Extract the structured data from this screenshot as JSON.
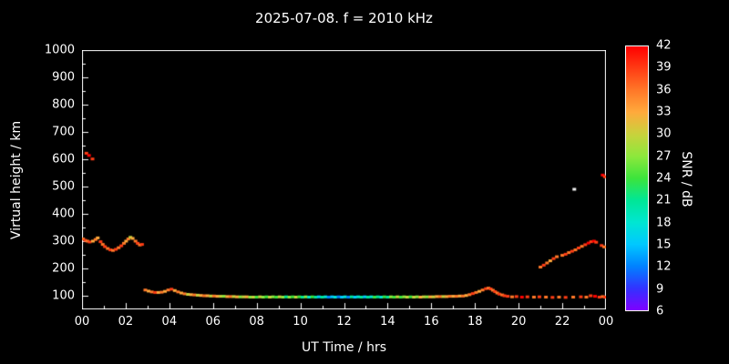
{
  "page": {
    "background": "#000000",
    "text_color": "#ffffff"
  },
  "chart_data": {
    "type": "scatter",
    "title": "2025-07-08. f = 2010 kHz",
    "xlabel": "UT Time / hrs",
    "ylabel": "Virtual height / km",
    "xlim": [
      0,
      24
    ],
    "ylim": [
      50,
      1000
    ],
    "xticks": [
      0,
      2,
      4,
      6,
      8,
      10,
      12,
      14,
      16,
      18,
      20,
      22,
      24
    ],
    "xtick_labels": [
      "00",
      "02",
      "04",
      "06",
      "08",
      "10",
      "12",
      "14",
      "16",
      "18",
      "20",
      "22",
      "00"
    ],
    "x_minor_step": 1,
    "yticks": [
      100,
      200,
      300,
      400,
      500,
      600,
      700,
      800,
      900,
      1000
    ],
    "ytick_labels": [
      "100",
      "200",
      "300",
      "400",
      "500",
      "600",
      "700",
      "800",
      "900",
      "1000"
    ],
    "y_minor_step": 50,
    "grid": false,
    "background": "#000000",
    "frame_color": "#ffffff",
    "colorbar": {
      "label": "SNR / dB",
      "min": 6,
      "max": 42,
      "ticks": [
        42,
        39,
        36,
        33,
        30,
        27,
        24,
        21,
        18,
        15,
        12,
        9,
        6
      ],
      "stops": [
        [
          6,
          "#7f00ff"
        ],
        [
          9,
          "#3232ff"
        ],
        [
          12,
          "#0082ff"
        ],
        [
          15,
          "#00c8ff"
        ],
        [
          18,
          "#00e6d2"
        ],
        [
          21,
          "#00e696"
        ],
        [
          24,
          "#3ce43c"
        ],
        [
          27,
          "#8ce83c"
        ],
        [
          30,
          "#c8d23c"
        ],
        [
          33,
          "#ffaa3c"
        ],
        [
          36,
          "#ff7828"
        ],
        [
          39,
          "#ff3c14"
        ],
        [
          42,
          "#ff0000"
        ]
      ]
    },
    "point_format": "[hour_ut, virtual_height_km, snr_db, optional_color_override]",
    "points": [
      [
        0.05,
        308,
        36
      ],
      [
        0.15,
        303,
        39
      ],
      [
        0.25,
        300,
        36
      ],
      [
        0.35,
        297,
        39
      ],
      [
        0.5,
        300,
        33
      ],
      [
        0.62,
        306,
        36
      ],
      [
        0.72,
        312,
        33
      ],
      [
        0.85,
        298,
        39
      ],
      [
        0.95,
        288,
        36
      ],
      [
        1.05,
        280,
        39
      ],
      [
        1.18,
        273,
        36
      ],
      [
        1.3,
        268,
        39
      ],
      [
        1.42,
        266,
        36
      ],
      [
        1.55,
        270,
        39
      ],
      [
        1.68,
        276,
        36
      ],
      [
        1.8,
        283,
        39
      ],
      [
        1.92,
        292,
        36
      ],
      [
        2.02,
        300,
        33
      ],
      [
        2.12,
        308,
        36
      ],
      [
        2.22,
        314,
        30
      ],
      [
        2.32,
        310,
        33
      ],
      [
        2.45,
        300,
        36
      ],
      [
        2.55,
        292,
        39
      ],
      [
        2.65,
        286,
        36
      ],
      [
        2.75,
        288,
        39
      ],
      [
        0.2,
        622,
        39
      ],
      [
        0.32,
        614,
        42
      ],
      [
        0.48,
        601,
        39
      ],
      [
        2.9,
        121,
        36
      ],
      [
        3.05,
        117,
        33
      ],
      [
        3.2,
        114,
        36
      ],
      [
        3.35,
        112,
        39
      ],
      [
        3.5,
        112,
        33
      ],
      [
        3.65,
        113,
        36
      ],
      [
        3.8,
        116,
        33
      ],
      [
        3.95,
        121,
        36
      ],
      [
        4.1,
        124,
        39
      ],
      [
        4.25,
        119,
        33
      ],
      [
        4.4,
        114,
        36
      ],
      [
        4.55,
        110,
        33
      ],
      [
        4.7,
        107,
        36
      ],
      [
        4.85,
        105,
        30
      ],
      [
        5.0,
        104,
        33
      ],
      [
        5.15,
        103,
        36
      ],
      [
        5.3,
        102,
        30
      ],
      [
        5.45,
        101,
        33
      ],
      [
        5.6,
        100,
        36
      ],
      [
        5.75,
        100,
        33
      ],
      [
        5.9,
        99,
        30
      ],
      [
        6.05,
        99,
        36
      ],
      [
        6.2,
        98,
        33
      ],
      [
        6.35,
        98,
        30
      ],
      [
        6.5,
        98,
        27
      ],
      [
        6.65,
        97,
        33
      ],
      [
        6.8,
        97,
        36
      ],
      [
        6.95,
        97,
        30
      ],
      [
        7.1,
        96,
        33
      ],
      [
        7.25,
        96,
        27
      ],
      [
        7.4,
        96,
        30
      ],
      [
        7.55,
        96,
        33
      ],
      [
        7.7,
        95,
        27
      ],
      [
        7.85,
        95,
        30
      ],
      [
        8.0,
        95,
        24
      ],
      [
        8.15,
        96,
        30
      ],
      [
        8.3,
        95,
        27
      ],
      [
        8.45,
        96,
        24
      ],
      [
        8.6,
        95,
        30
      ],
      [
        8.75,
        96,
        27
      ],
      [
        8.9,
        95,
        24
      ],
      [
        9.05,
        96,
        30
      ],
      [
        9.2,
        95,
        27
      ],
      [
        9.35,
        96,
        21
      ],
      [
        9.5,
        95,
        27
      ],
      [
        9.65,
        96,
        24
      ],
      [
        9.8,
        95,
        30
      ],
      [
        9.95,
        96,
        24
      ],
      [
        10.1,
        95,
        21
      ],
      [
        10.25,
        96,
        27
      ],
      [
        10.4,
        95,
        18
      ],
      [
        10.55,
        96,
        24
      ],
      [
        10.7,
        95,
        21
      ],
      [
        10.85,
        96,
        15
      ],
      [
        11.0,
        95,
        21
      ],
      [
        11.15,
        96,
        18
      ],
      [
        11.3,
        95,
        12
      ],
      [
        11.45,
        96,
        15
      ],
      [
        11.6,
        95,
        18
      ],
      [
        11.75,
        96,
        12
      ],
      [
        11.9,
        95,
        15
      ],
      [
        12.05,
        96,
        18
      ],
      [
        12.2,
        95,
        12
      ],
      [
        12.35,
        96,
        21
      ],
      [
        12.5,
        95,
        15
      ],
      [
        12.65,
        96,
        18
      ],
      [
        12.8,
        95,
        21
      ],
      [
        12.95,
        96,
        15
      ],
      [
        13.1,
        95,
        21
      ],
      [
        13.25,
        96,
        18
      ],
      [
        13.4,
        95,
        24
      ],
      [
        13.55,
        96,
        21
      ],
      [
        13.7,
        95,
        18
      ],
      [
        13.85,
        96,
        24
      ],
      [
        14.0,
        95,
        21
      ],
      [
        14.15,
        96,
        27
      ],
      [
        14.3,
        95,
        24
      ],
      [
        14.45,
        96,
        30
      ],
      [
        14.6,
        95,
        24
      ],
      [
        14.75,
        96,
        27
      ],
      [
        14.9,
        95,
        30
      ],
      [
        15.05,
        96,
        24
      ],
      [
        15.2,
        95,
        30
      ],
      [
        15.35,
        96,
        27
      ],
      [
        15.5,
        95,
        33
      ],
      [
        15.65,
        96,
        30
      ],
      [
        15.8,
        96,
        27
      ],
      [
        15.95,
        96,
        33
      ],
      [
        16.1,
        96,
        30
      ],
      [
        16.25,
        97,
        33
      ],
      [
        16.4,
        97,
        36
      ],
      [
        16.55,
        97,
        30
      ],
      [
        16.7,
        97,
        33
      ],
      [
        16.85,
        98,
        36
      ],
      [
        17.0,
        98,
        33
      ],
      [
        17.15,
        98,
        36
      ],
      [
        17.3,
        99,
        33
      ],
      [
        17.45,
        99,
        36
      ],
      [
        17.6,
        101,
        33
      ],
      [
        17.75,
        104,
        36
      ],
      [
        17.9,
        108,
        39
      ],
      [
        18.05,
        112,
        36
      ],
      [
        18.2,
        116,
        33
      ],
      [
        18.35,
        121,
        36
      ],
      [
        18.5,
        126,
        39
      ],
      [
        18.62,
        128,
        36
      ],
      [
        18.72,
        125,
        39
      ],
      [
        18.82,
        120,
        36
      ],
      [
        18.92,
        115,
        39
      ],
      [
        19.02,
        110,
        36
      ],
      [
        19.12,
        106,
        39
      ],
      [
        19.25,
        103,
        36
      ],
      [
        19.35,
        100,
        39
      ],
      [
        19.5,
        98,
        39
      ],
      [
        19.7,
        96,
        36
      ],
      [
        19.9,
        97,
        39
      ],
      [
        20.15,
        95,
        42
      ],
      [
        20.4,
        96,
        39
      ],
      [
        20.7,
        95,
        36
      ],
      [
        20.95,
        96,
        39
      ],
      [
        21.25,
        95,
        36
      ],
      [
        21.55,
        94,
        39
      ],
      [
        21.85,
        95,
        36
      ],
      [
        22.15,
        94,
        39
      ],
      [
        22.5,
        95,
        36
      ],
      [
        22.85,
        96,
        39
      ],
      [
        23.1,
        95,
        36
      ],
      [
        23.3,
        100,
        39
      ],
      [
        23.5,
        98,
        42
      ],
      [
        23.7,
        95,
        39
      ],
      [
        23.85,
        97,
        36
      ],
      [
        23.95,
        95,
        39
      ],
      [
        21.0,
        205,
        36
      ],
      [
        21.15,
        212,
        39
      ],
      [
        21.3,
        220,
        36
      ],
      [
        21.45,
        228,
        33
      ],
      [
        21.6,
        236,
        39
      ],
      [
        21.75,
        243,
        36
      ],
      [
        22.0,
        248,
        36
      ],
      [
        22.15,
        252,
        39
      ],
      [
        22.3,
        258,
        36
      ],
      [
        22.45,
        263,
        39
      ],
      [
        22.6,
        268,
        36
      ],
      [
        22.75,
        275,
        39
      ],
      [
        22.9,
        281,
        36
      ],
      [
        23.05,
        287,
        39
      ],
      [
        23.2,
        293,
        42
      ],
      [
        23.32,
        298,
        39
      ],
      [
        23.45,
        300,
        42
      ],
      [
        23.55,
        296,
        39
      ],
      [
        22.55,
        490,
        30,
        "#f0f0f0"
      ],
      [
        23.85,
        542,
        42
      ],
      [
        23.95,
        536,
        39
      ],
      [
        23.8,
        284,
        39
      ],
      [
        23.92,
        279,
        36
      ]
    ]
  }
}
